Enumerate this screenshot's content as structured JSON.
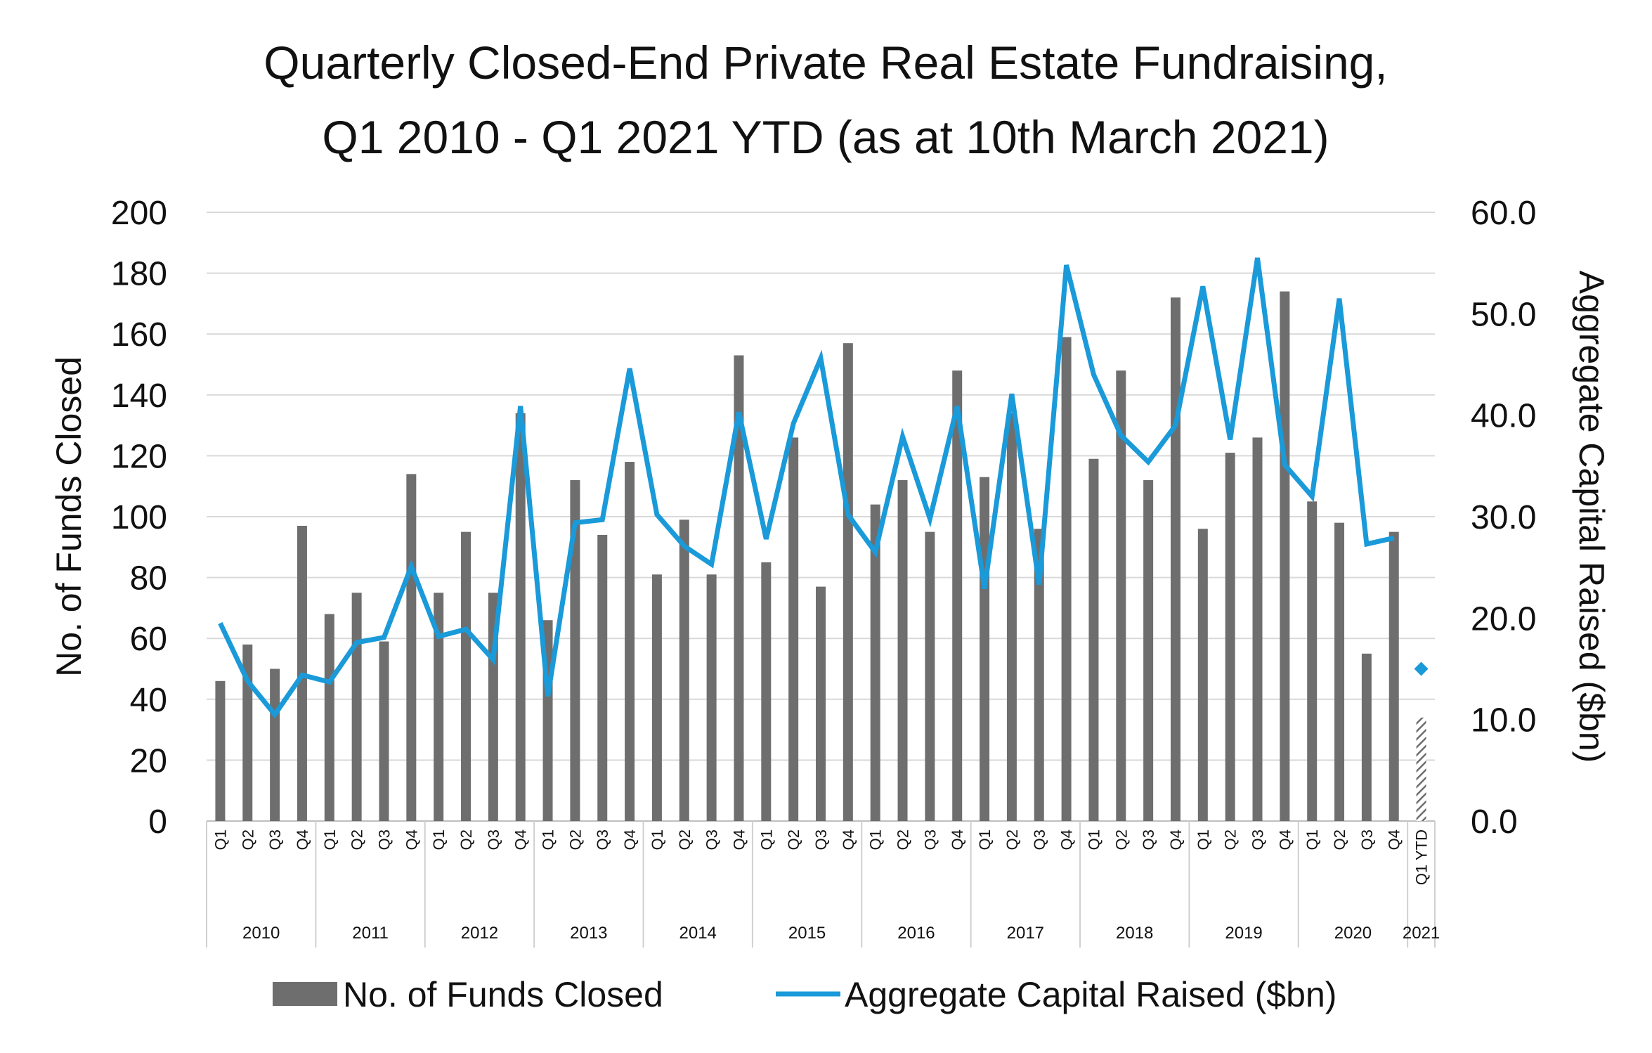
{
  "chart_data": {
    "type": "bar",
    "title_lines": [
      "Quarterly Closed-End Private Real Estate Fundraising,",
      "Q1 2010 - Q1 2021 YTD   (as at 10th March 2021)"
    ],
    "ylabel_left": "No. of Funds Closed",
    "ylabel_right": "Aggregate Capital Raised ($bn)",
    "ylim_left": [
      0,
      200
    ],
    "yticks_left": [
      "0",
      "20",
      "40",
      "60",
      "80",
      "100",
      "120",
      "140",
      "160",
      "180",
      "200"
    ],
    "ylim_right": [
      0,
      60
    ],
    "yticks_right": [
      "0.0",
      "10.0",
      "20.0",
      "30.0",
      "40.0",
      "50.0",
      "60.0"
    ],
    "grid": true,
    "legend_position": "bottom",
    "colors": {
      "bars": "#6e6e6e",
      "line": "#1a9ad9",
      "grid": "#d9d9d9",
      "axis_divider": "#d0d0d0"
    },
    "quarter_labels": [
      "Q1",
      "Q2",
      "Q3",
      "Q4",
      "Q1",
      "Q2",
      "Q3",
      "Q4",
      "Q1",
      "Q2",
      "Q3",
      "Q4",
      "Q1",
      "Q2",
      "Q3",
      "Q4",
      "Q1",
      "Q2",
      "Q3",
      "Q4",
      "Q1",
      "Q2",
      "Q3",
      "Q4",
      "Q1",
      "Q2",
      "Q3",
      "Q4",
      "Q1",
      "Q2",
      "Q3",
      "Q4",
      "Q1",
      "Q2",
      "Q3",
      "Q4",
      "Q1",
      "Q2",
      "Q3",
      "Q4",
      "Q1",
      "Q2",
      "Q3",
      "Q4",
      "Q1 YTD"
    ],
    "years": [
      {
        "label": "2010",
        "span": 4
      },
      {
        "label": "2011",
        "span": 4
      },
      {
        "label": "2012",
        "span": 4
      },
      {
        "label": "2013",
        "span": 4
      },
      {
        "label": "2014",
        "span": 4
      },
      {
        "label": "2015",
        "span": 4
      },
      {
        "label": "2016",
        "span": 4
      },
      {
        "label": "2017",
        "span": 4
      },
      {
        "label": "2018",
        "span": 4
      },
      {
        "label": "2019",
        "span": 4
      },
      {
        "label": "2020",
        "span": 4
      },
      {
        "label": "2021",
        "span": 1
      }
    ],
    "series": [
      {
        "name": "No. of Funds Closed",
        "type": "bar",
        "axis": "left",
        "values": [
          46,
          58,
          50,
          97,
          68,
          75,
          59,
          114,
          75,
          95,
          75,
          134,
          66,
          112,
          94,
          118,
          81,
          99,
          81,
          153,
          85,
          126,
          77,
          157,
          104,
          112,
          95,
          148,
          113,
          134,
          96,
          159,
          119,
          148,
          112,
          172,
          96,
          121,
          126,
          174,
          105,
          98,
          55,
          95,
          34
        ],
        "ytd_hatched_index": 44
      },
      {
        "name": "Aggregate Capital Raised ($bn)",
        "type": "line",
        "axis": "right",
        "values": [
          19.5,
          13.8,
          10.5,
          14.4,
          13.7,
          17.6,
          18.1,
          25.1,
          18.2,
          18.9,
          15.9,
          40.9,
          12.3,
          29.4,
          29.7,
          44.6,
          30.2,
          27.1,
          25.3,
          40.3,
          27.8,
          39.2,
          45.6,
          30.2,
          26.5,
          37.9,
          29.8,
          40.9,
          22.9,
          42.1,
          23.3,
          54.8,
          44.0,
          38.0,
          35.4,
          39.0,
          52.7,
          37.6,
          55.5,
          35.1,
          32.0,
          51.5,
          27.3,
          27.9,
          null
        ],
        "ytd_marker": {
          "index": 44,
          "value": 15.0
        }
      }
    ]
  }
}
